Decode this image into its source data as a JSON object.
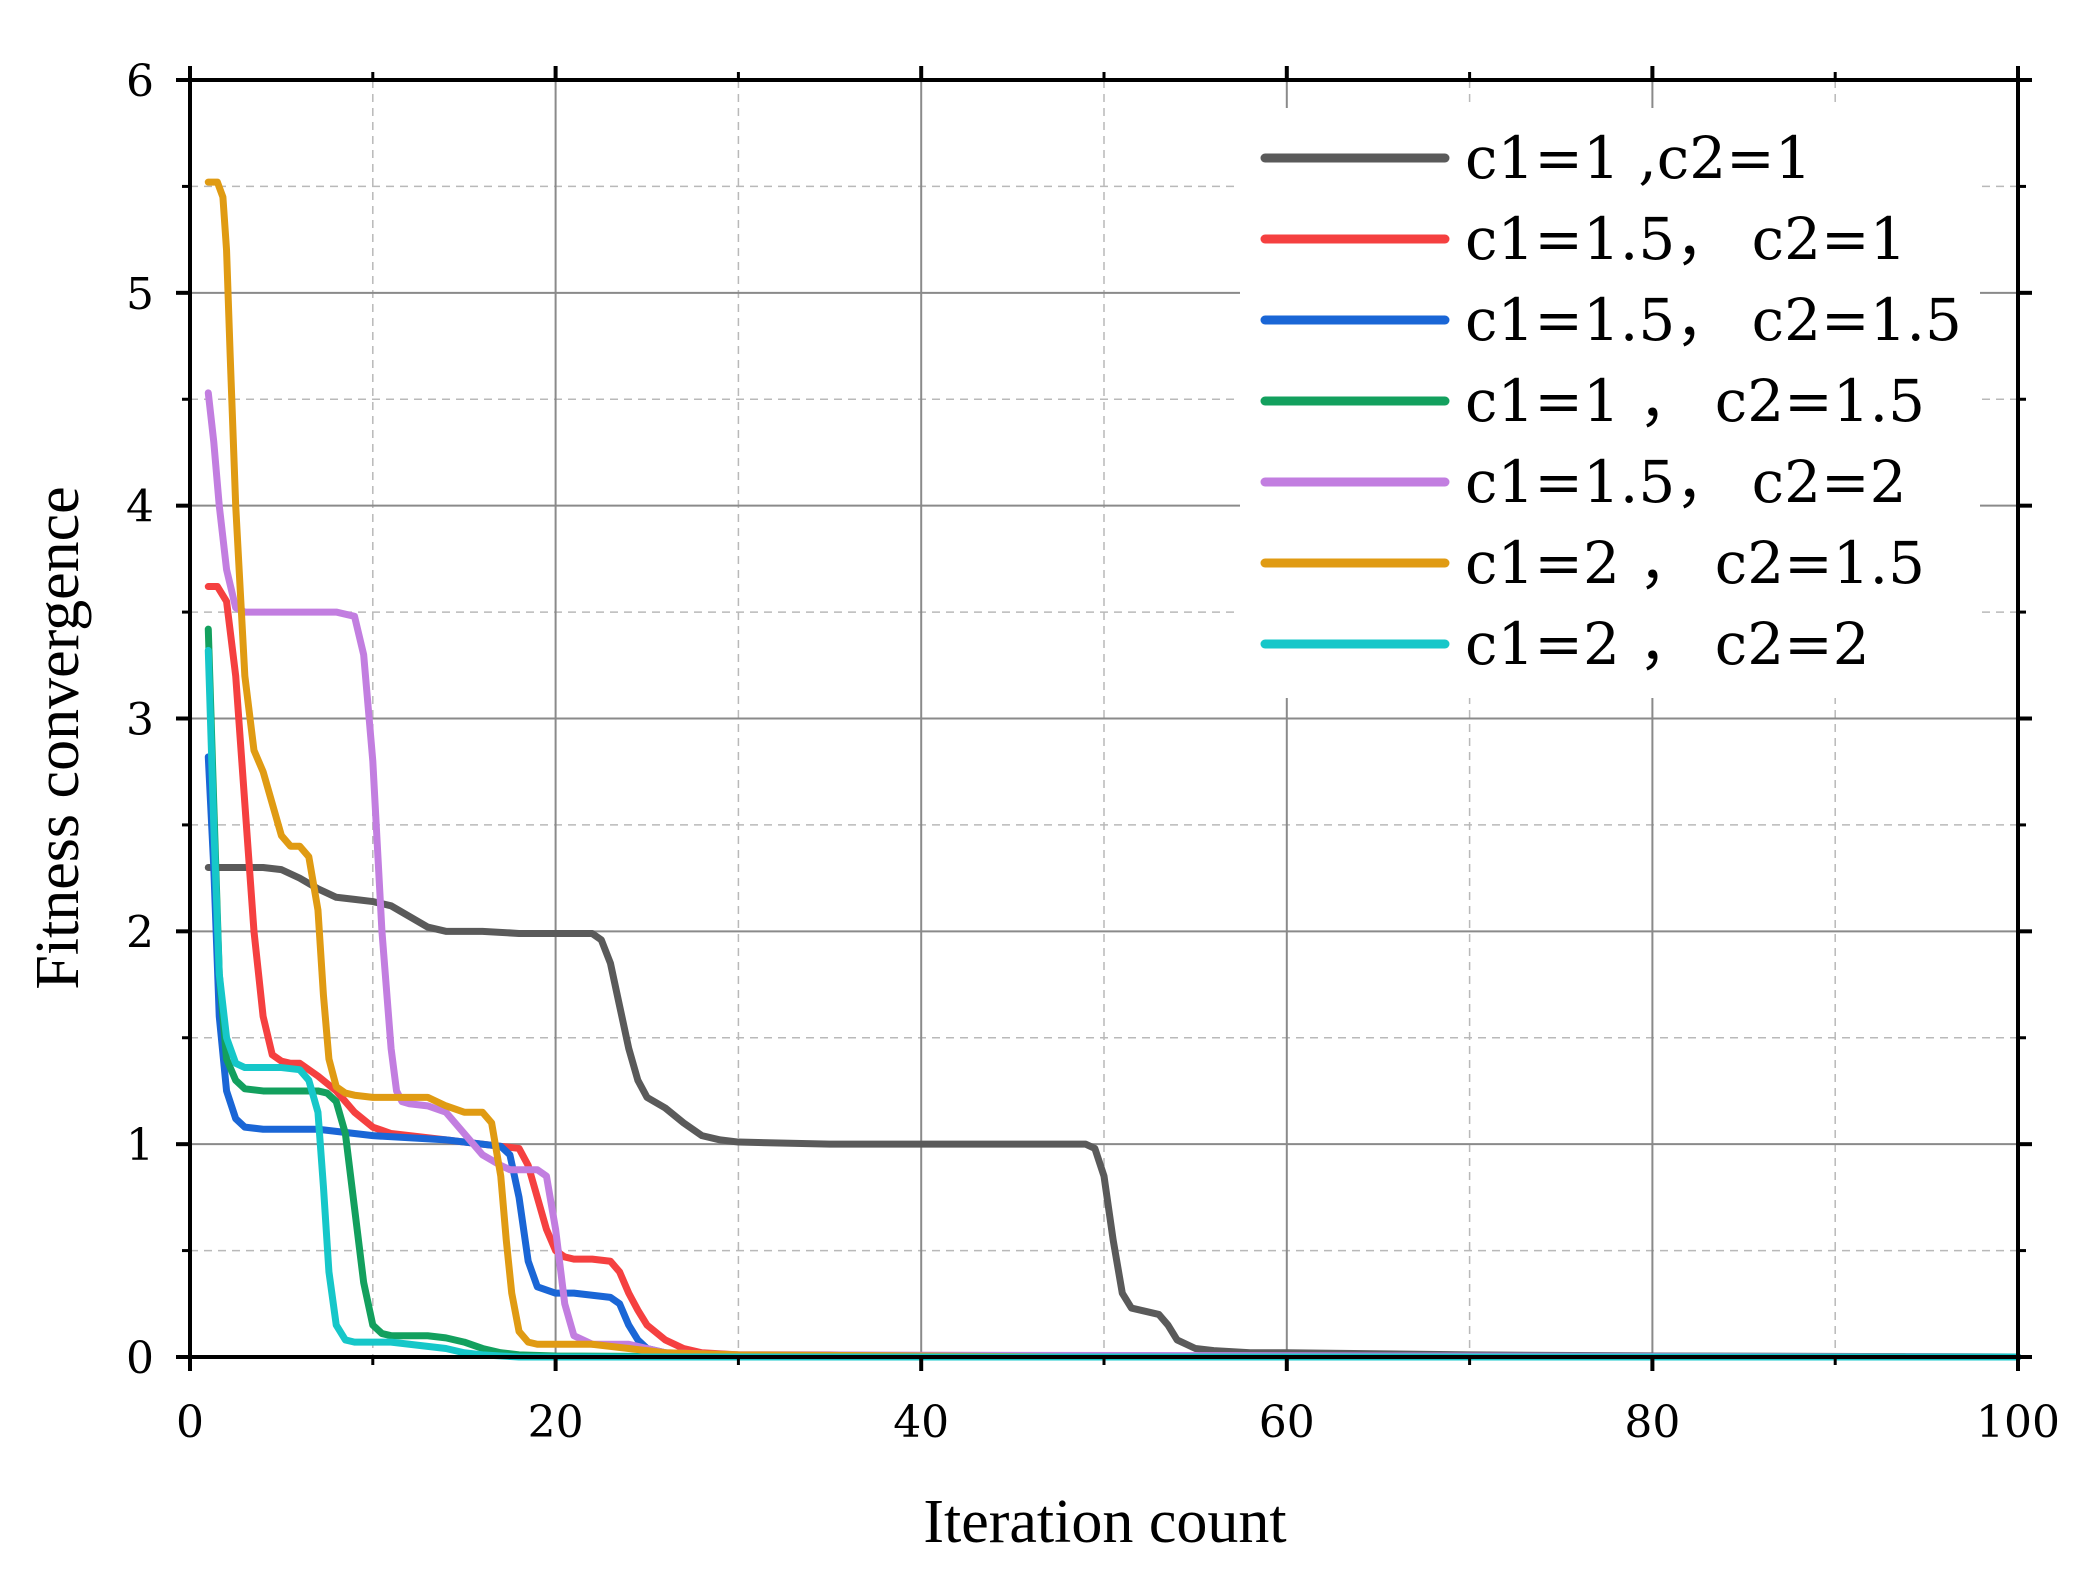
{
  "chart_data": {
    "type": "line",
    "title": "",
    "xlabel": "Iteration count",
    "ylabel": "Fitness convergence",
    "xlim": [
      0,
      100
    ],
    "ylim": [
      0,
      6
    ],
    "xticks": [
      "0",
      "20",
      "40",
      "60",
      "80",
      "100"
    ],
    "yticks": [
      "0",
      "1",
      "2",
      "3",
      "4",
      "5",
      "6"
    ],
    "grid": true,
    "legend_position": "top-right",
    "series": [
      {
        "name": "c1=1  ,c2=1",
        "color": "#5a5a5a",
        "x": [
          1,
          2,
          3,
          4,
          5,
          6,
          7,
          8,
          9,
          10,
          11,
          12,
          13,
          14,
          16,
          18,
          20,
          21,
          22,
          22.5,
          23,
          23.5,
          24,
          24.5,
          25,
          26,
          27,
          28,
          29,
          30,
          35,
          40,
          45,
          49,
          49.5,
          50,
          50.5,
          51,
          51.5,
          52,
          53,
          53.5,
          54,
          55,
          56,
          58,
          60,
          70,
          80,
          100
        ],
        "y": [
          2.3,
          2.3,
          2.3,
          2.3,
          2.29,
          2.25,
          2.2,
          2.16,
          2.15,
          2.14,
          2.12,
          2.07,
          2.02,
          2.0,
          2.0,
          1.99,
          1.99,
          1.99,
          1.99,
          1.96,
          1.85,
          1.65,
          1.45,
          1.3,
          1.22,
          1.17,
          1.1,
          1.04,
          1.02,
          1.01,
          1.0,
          1.0,
          1.0,
          1.0,
          0.98,
          0.85,
          0.55,
          0.3,
          0.23,
          0.22,
          0.2,
          0.15,
          0.08,
          0.04,
          0.03,
          0.02,
          0.02,
          0.01,
          0.005,
          0.0
        ]
      },
      {
        "name": "c1=1.5， c2=1",
        "color": "#f54040",
        "x": [
          1,
          1.5,
          2,
          2.5,
          3,
          3.5,
          4,
          4.5,
          5,
          5.5,
          6,
          7,
          8,
          9,
          10,
          11,
          12,
          14,
          16,
          17,
          18,
          18.5,
          19,
          19.5,
          20,
          20.5,
          21,
          22,
          23,
          23.5,
          24,
          24.5,
          25,
          26,
          27,
          28,
          30,
          35,
          40,
          100
        ],
        "y": [
          3.62,
          3.62,
          3.55,
          3.2,
          2.6,
          2.0,
          1.6,
          1.42,
          1.39,
          1.38,
          1.38,
          1.32,
          1.25,
          1.15,
          1.08,
          1.05,
          1.04,
          1.02,
          1.0,
          0.99,
          0.98,
          0.9,
          0.75,
          0.6,
          0.5,
          0.47,
          0.46,
          0.46,
          0.45,
          0.4,
          0.3,
          0.22,
          0.15,
          0.08,
          0.04,
          0.02,
          0.01,
          0.01,
          0.005,
          0.0
        ]
      },
      {
        "name": "c1=1.5， c2=1.5",
        "color": "#1a66d6",
        "x": [
          1,
          1.3,
          1.6,
          2,
          2.5,
          3,
          4,
          5,
          6,
          7,
          8,
          10,
          12,
          14,
          16,
          17,
          17.5,
          18,
          18.5,
          19,
          20,
          21,
          22,
          23,
          23.5,
          24,
          24.5,
          25,
          26,
          27,
          30,
          40,
          100
        ],
        "y": [
          2.82,
          2.3,
          1.6,
          1.25,
          1.12,
          1.08,
          1.07,
          1.07,
          1.07,
          1.07,
          1.06,
          1.04,
          1.03,
          1.02,
          1.0,
          0.99,
          0.95,
          0.75,
          0.45,
          0.33,
          0.3,
          0.3,
          0.29,
          0.28,
          0.25,
          0.15,
          0.08,
          0.04,
          0.02,
          0.01,
          0.005,
          0.0,
          0.0
        ]
      },
      {
        "name": "c1=1  ， c2=1.5",
        "color": "#13a05e",
        "x": [
          1,
          1.3,
          1.6,
          2,
          2.5,
          3,
          4,
          5,
          6,
          7,
          7.5,
          8,
          8.5,
          9,
          9.5,
          10,
          10.5,
          11,
          12,
          13,
          14,
          15,
          16,
          17,
          18,
          20,
          30,
          100
        ],
        "y": [
          3.42,
          2.6,
          1.8,
          1.4,
          1.3,
          1.26,
          1.25,
          1.25,
          1.25,
          1.25,
          1.24,
          1.2,
          1.05,
          0.7,
          0.35,
          0.15,
          0.11,
          0.1,
          0.1,
          0.1,
          0.09,
          0.07,
          0.04,
          0.02,
          0.01,
          0.005,
          0.0,
          0.0
        ]
      },
      {
        "name": "c1=1.5， c2=2",
        "color": "#c27ee0",
        "x": [
          1,
          1.3,
          1.6,
          2,
          2.5,
          3,
          4,
          5,
          6,
          7,
          8,
          9,
          9.5,
          10,
          10.5,
          11,
          11.3,
          11.6,
          12,
          13,
          14,
          15,
          16,
          17,
          17.5,
          18,
          19,
          19.5,
          20,
          20.5,
          21,
          22,
          23,
          24,
          25,
          26,
          30,
          100
        ],
        "y": [
          4.53,
          4.3,
          4.0,
          3.7,
          3.52,
          3.5,
          3.5,
          3.5,
          3.5,
          3.5,
          3.5,
          3.48,
          3.3,
          2.8,
          2.0,
          1.45,
          1.25,
          1.2,
          1.19,
          1.18,
          1.15,
          1.05,
          0.95,
          0.9,
          0.88,
          0.88,
          0.88,
          0.85,
          0.6,
          0.25,
          0.1,
          0.06,
          0.06,
          0.06,
          0.04,
          0.02,
          0.01,
          0.0
        ]
      },
      {
        "name": "c1=2  ， c2=1.5",
        "color": "#e09b13",
        "x": [
          1,
          1.5,
          1.8,
          2,
          2.2,
          2.5,
          3,
          3.5,
          4,
          4.5,
          5,
          5.5,
          6,
          6.5,
          7,
          7.3,
          7.6,
          8,
          8.5,
          9,
          10,
          11,
          12,
          13,
          14,
          15,
          16,
          16.5,
          17,
          17.3,
          17.6,
          18,
          18.5,
          19,
          20,
          22,
          23,
          24,
          26,
          30,
          40,
          48
        ],
        "y": [
          5.52,
          5.52,
          5.45,
          5.2,
          4.7,
          4.0,
          3.2,
          2.85,
          2.75,
          2.6,
          2.45,
          2.4,
          2.4,
          2.35,
          2.1,
          1.7,
          1.4,
          1.27,
          1.24,
          1.23,
          1.22,
          1.22,
          1.22,
          1.22,
          1.18,
          1.15,
          1.15,
          1.1,
          0.85,
          0.55,
          0.3,
          0.12,
          0.07,
          0.06,
          0.06,
          0.06,
          0.05,
          0.04,
          0.02,
          0.01,
          0.005,
          0.0
        ]
      },
      {
        "name": "c1=2  ， c2=2",
        "color": "#16c7c9",
        "x": [
          1,
          1.3,
          1.6,
          2,
          2.5,
          3,
          4,
          5,
          6,
          6.5,
          7,
          7.3,
          7.6,
          8,
          8.5,
          9,
          10,
          11,
          12,
          13,
          14,
          15,
          16,
          17,
          18,
          20,
          30,
          100
        ],
        "y": [
          3.32,
          2.5,
          1.8,
          1.5,
          1.38,
          1.36,
          1.36,
          1.36,
          1.35,
          1.3,
          1.15,
          0.8,
          0.4,
          0.15,
          0.08,
          0.07,
          0.07,
          0.07,
          0.06,
          0.05,
          0.04,
          0.02,
          0.01,
          0.005,
          0.0,
          0.0,
          0.0,
          0.0
        ]
      }
    ]
  }
}
